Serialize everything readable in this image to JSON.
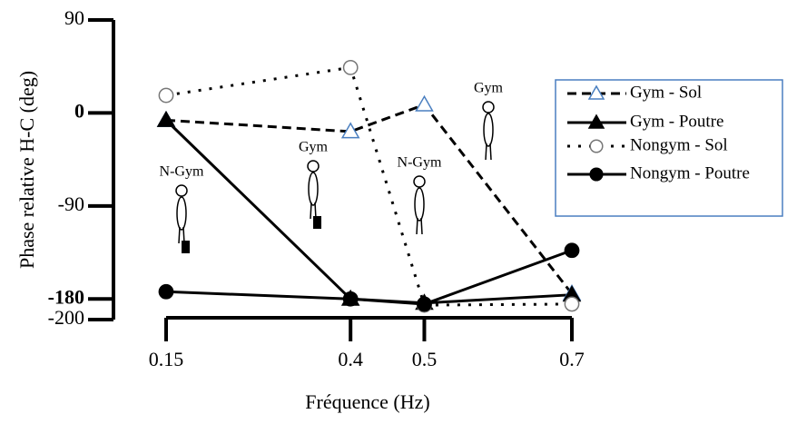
{
  "chart_data": {
    "type": "line",
    "y_label": "Phase relative H-C (deg)",
    "x_label": "Fréquence (Hz)",
    "x": [
      0.15,
      0.4,
      0.5,
      0.7
    ],
    "xlim": [
      0.15,
      0.7
    ],
    "xticks": [
      0.15,
      0.4,
      0.5,
      0.7
    ],
    "ylim": [
      -200,
      90
    ],
    "yticks": [
      90,
      0,
      -90,
      -180,
      -200
    ],
    "legend": "right",
    "series": [
      {
        "name": "Gym - Sol",
        "color": "#000000",
        "linestyle": "dashed",
        "marker": "open-triangle",
        "values": [
          -7,
          -18,
          8,
          -175
        ]
      },
      {
        "name": "Gym - Poutre",
        "color": "#000000",
        "linestyle": "solid",
        "marker": "triangle",
        "values": [
          -7,
          -180,
          -184,
          -176
        ]
      },
      {
        "name": "Nongym - Sol",
        "color": "#000000",
        "linestyle": "dotted",
        "marker": "open-circle",
        "values": [
          17,
          44,
          -186,
          -185
        ]
      },
      {
        "name": "Nongym - Poutre",
        "color": "#000000",
        "linestyle": "solid",
        "marker": "circle",
        "values": [
          -173,
          -180,
          -185,
          -133
        ]
      }
    ],
    "annotations": [
      "N-Gym",
      "Gym",
      "N-Gym",
      "Gym"
    ]
  }
}
